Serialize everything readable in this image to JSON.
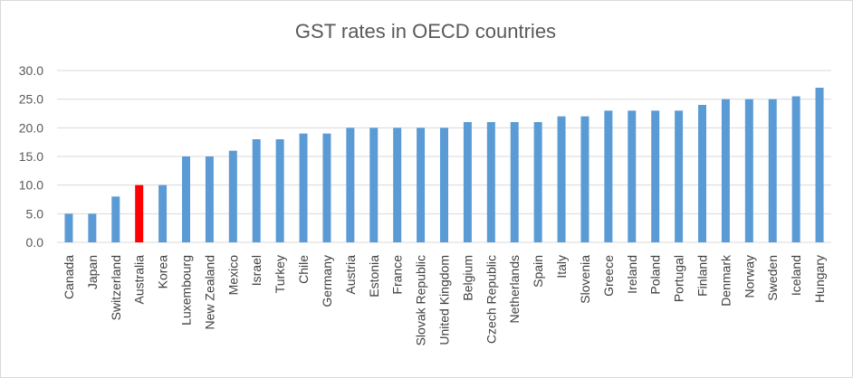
{
  "chart_data": {
    "type": "bar",
    "title": "GST rates in OECD countries",
    "xlabel": "",
    "ylabel": "",
    "ylim": [
      0,
      30
    ],
    "yticks": [
      "0.0",
      "5.0",
      "10.0",
      "15.0",
      "20.0",
      "25.0",
      "30.0"
    ],
    "grid": true,
    "legend": "none",
    "categories": [
      "Canada",
      "Japan",
      "Switzerland",
      "Australia",
      "Korea",
      "Luxembourg",
      "New Zealand",
      "Mexico",
      "Israel",
      "Turkey",
      "Chile",
      "Germany",
      "Austria",
      "Estonia",
      "France",
      "Slovak Republic",
      "United Kingdom",
      "Belgium",
      "Czech Republic",
      "Netherlands",
      "Spain",
      "Italy",
      "Slovenia",
      "Greece",
      "Ireland",
      "Poland",
      "Portugal",
      "Finland",
      "Denmark",
      "Norway",
      "Sweden",
      "Iceland",
      "Hungary"
    ],
    "values": [
      5,
      5,
      8,
      10,
      10,
      15,
      15,
      16,
      18,
      18,
      19,
      19,
      20,
      20,
      20,
      20,
      20,
      21,
      21,
      21,
      21,
      22,
      22,
      23,
      23,
      23,
      23,
      24,
      25,
      25,
      25,
      25.5,
      27
    ],
    "colors": {
      "default": "#5b9bd5",
      "highlight": "#ff0000",
      "highlight_category": "Australia"
    }
  }
}
